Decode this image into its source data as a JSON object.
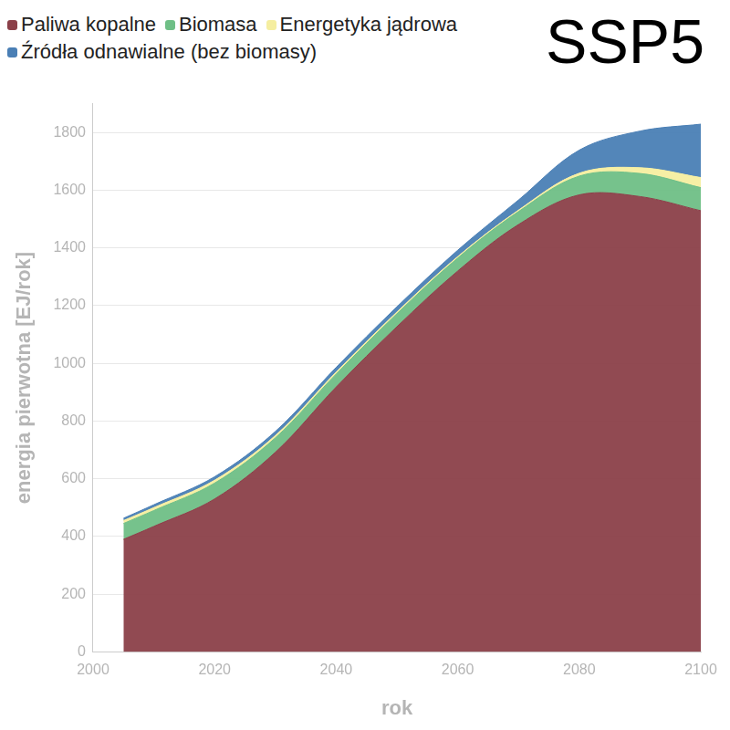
{
  "chart_data": {
    "type": "area",
    "title": "SSP5",
    "x_label": "rok",
    "y_label": "energia pierwotna [EJ/rok]",
    "x": [
      2005,
      2010,
      2020,
      2030,
      2040,
      2050,
      2060,
      2070,
      2080,
      2090,
      2100
    ],
    "series": [
      {
        "name": "Paliwa kopalne",
        "color": "#8b4049",
        "values": [
          390,
          435,
          530,
          692,
          918,
          1127,
          1320,
          1481,
          1584,
          1578,
          1529
        ]
      },
      {
        "name": "Biomasa",
        "color": "#6fbf86",
        "values": [
          55,
          55,
          55,
          50,
          45,
          45,
          45,
          45,
          65,
          80,
          80
        ]
      },
      {
        "name": "Energetyka jądrowa",
        "color": "#f5eea0",
        "values": [
          10,
          10,
          10,
          8,
          7,
          6,
          5,
          5,
          10,
          20,
          35
        ]
      },
      {
        "name": "Źródła odnawialne (bez biomasy)",
        "color": "#4a7fb5",
        "values": [
          8,
          10,
          12,
          14,
          16,
          18,
          22,
          35,
          80,
          127,
          185
        ]
      }
    ],
    "xlim": [
      2000,
      2100
    ],
    "xticks": [
      2000,
      2020,
      2040,
      2060,
      2080,
      2100
    ],
    "ylim": [
      0,
      1900
    ],
    "yticks": [
      0,
      200,
      400,
      600,
      800,
      1000,
      1200,
      1400,
      1600,
      1800
    ],
    "stacked": true,
    "grid": true,
    "legend": "top-left"
  }
}
